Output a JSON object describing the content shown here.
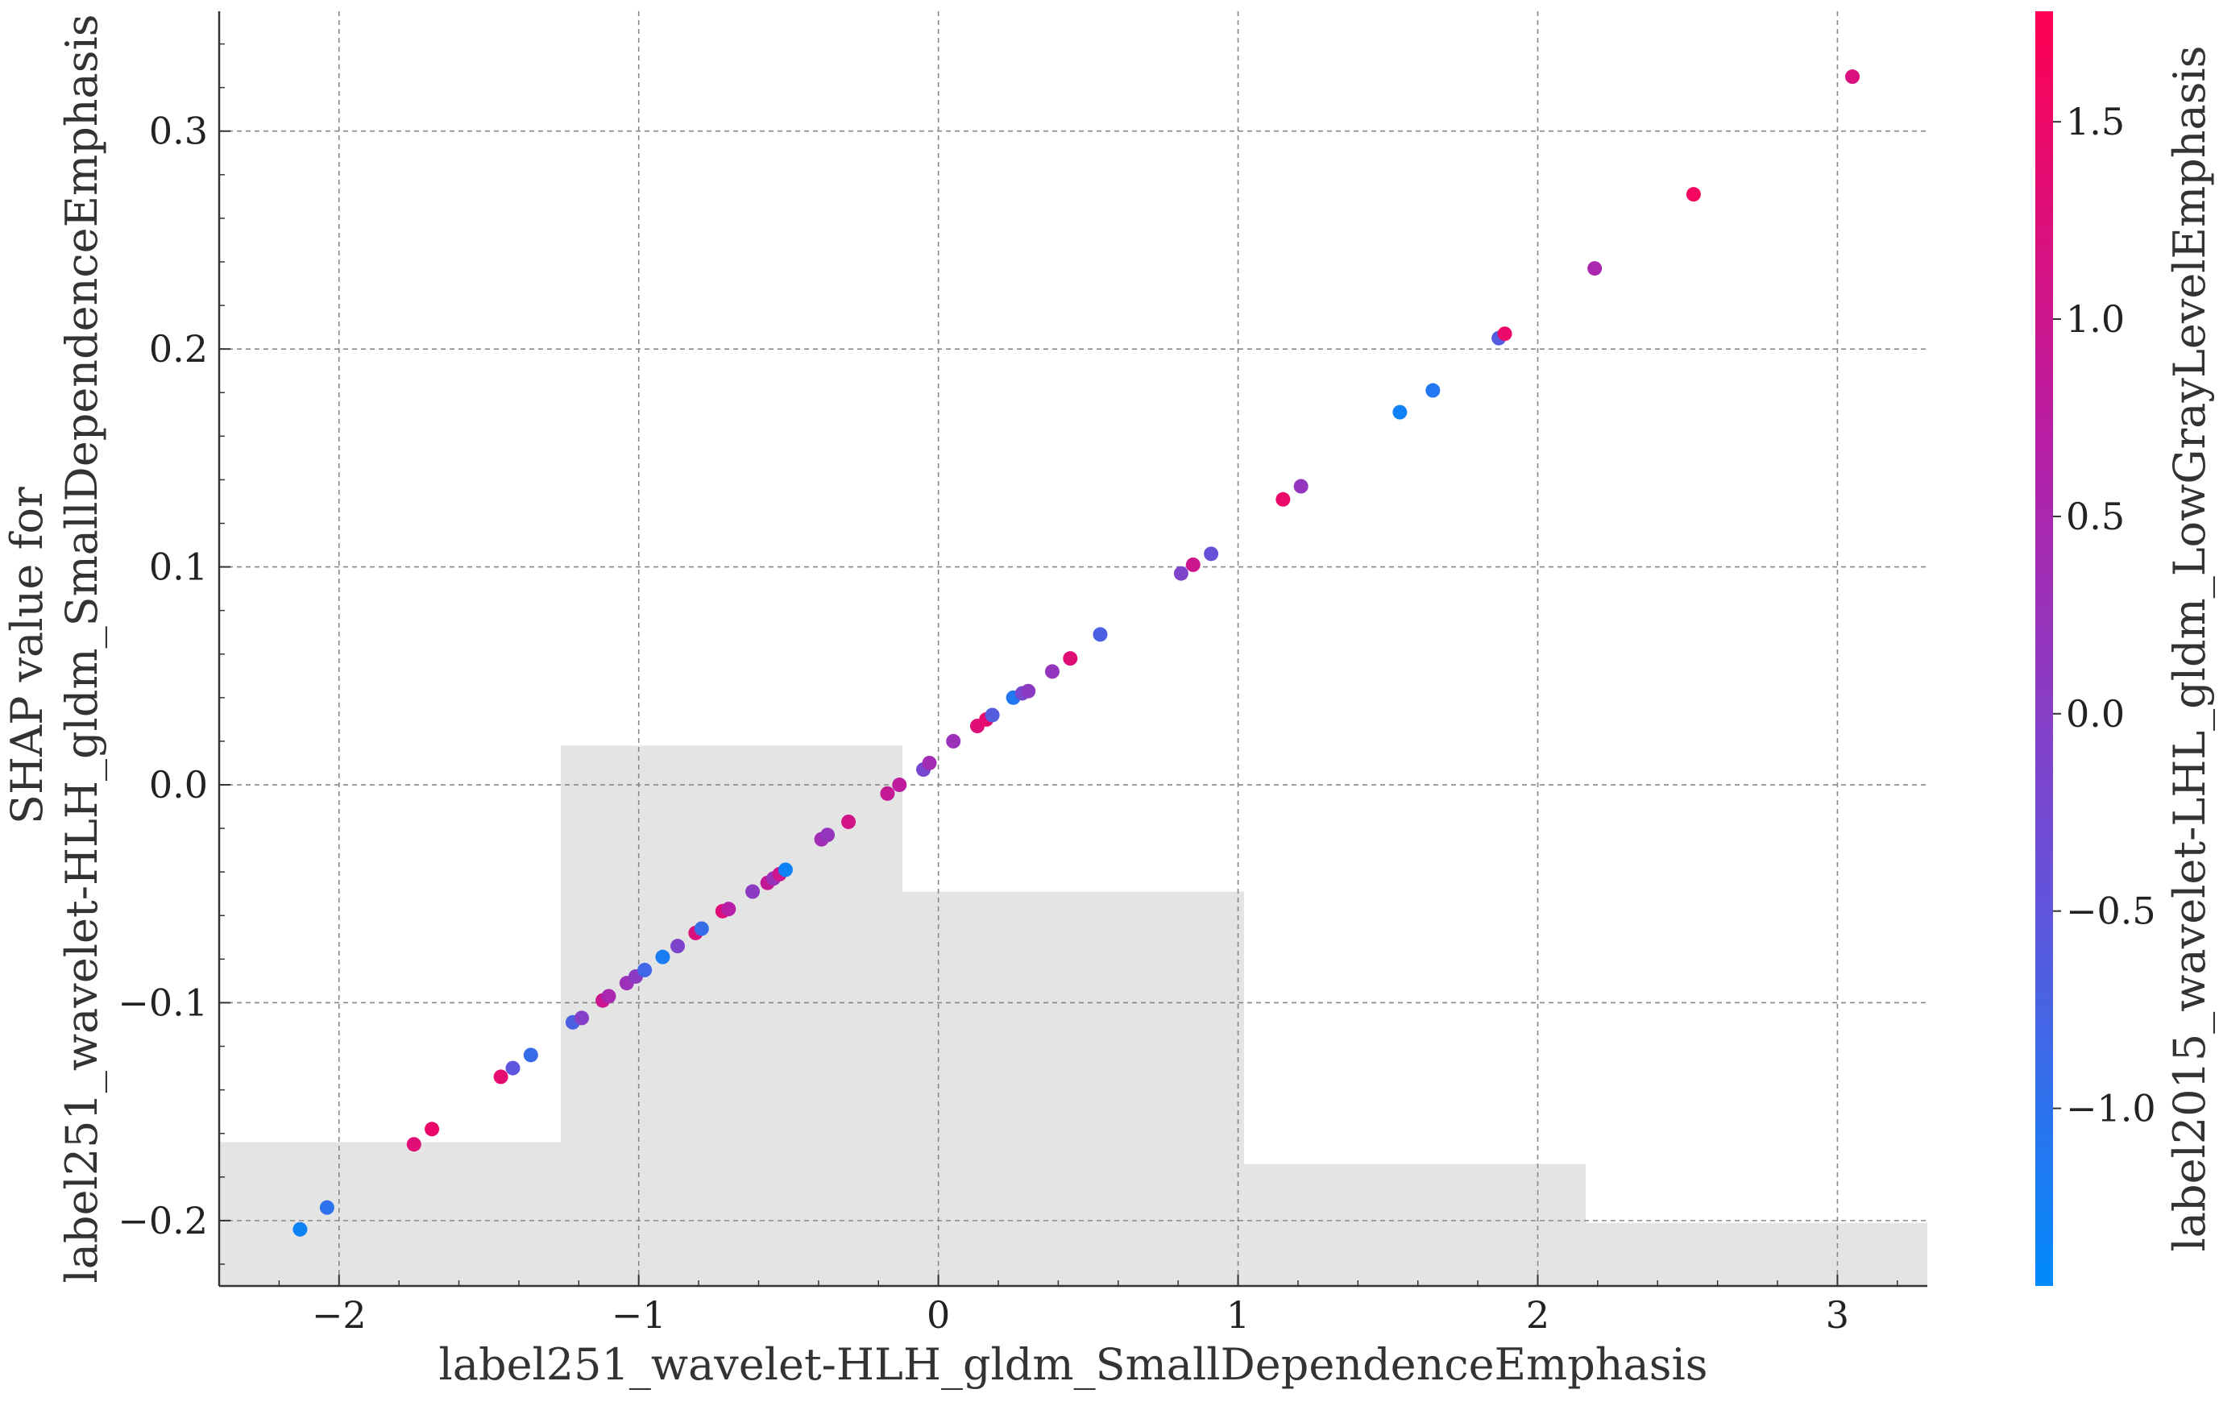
{
  "chart_data": {
    "type": "scatter",
    "xlabel": "label251_wavelet-HLH_gldm_SmallDependenceEmphasis",
    "ylabel_lines": [
      "SHAP value for",
      "label251_wavelet-HLH_gldm_SmallDependenceEmphasis"
    ],
    "colorbar_label": "label2015_wavelet-LHL_gldm_LowGrayLevelEmphasis",
    "xlim": [
      -2.4,
      3.3
    ],
    "ylim": [
      -0.23,
      0.355
    ],
    "x_ticks": [
      -2,
      -1,
      0,
      1,
      2,
      3
    ],
    "x_tick_labels": [
      "−2",
      "−1",
      "0",
      "1",
      "2",
      "3"
    ],
    "y_ticks": [
      -0.2,
      -0.1,
      0.0,
      0.1,
      0.2,
      0.3
    ],
    "y_tick_labels": [
      "−0.2",
      "−0.1",
      "0.0",
      "0.1",
      "0.2",
      "0.3"
    ],
    "colorbar_range": [
      -1.45,
      1.78
    ],
    "colorbar_ticks": [
      -1.0,
      -0.5,
      0.0,
      0.5,
      1.0,
      1.5
    ],
    "colorbar_tick_labels": [
      "−1.0",
      "−0.5",
      "0.0",
      "0.5",
      "1.0",
      "1.5"
    ],
    "colormap": [
      "#008bfb",
      "#6b4fd8",
      "#b71fa6",
      "#ff0052"
    ],
    "grid": true,
    "histogram": {
      "color": "#e4e4e4",
      "bin_edges": [
        -2.4,
        -1.26,
        -0.12,
        1.02,
        2.16,
        3.3
      ],
      "heights": [
        -0.164,
        0.018,
        -0.049,
        -0.174,
        -0.201
      ],
      "baseline": -0.23
    },
    "points": [
      {
        "x": -2.13,
        "y": -0.204,
        "c": -1.3
      },
      {
        "x": -2.04,
        "y": -0.194,
        "c": -1.0
      },
      {
        "x": -1.75,
        "y": -0.165,
        "c": 1.3
      },
      {
        "x": -1.69,
        "y": -0.158,
        "c": 1.5
      },
      {
        "x": -1.46,
        "y": -0.134,
        "c": 1.4
      },
      {
        "x": -1.42,
        "y": -0.13,
        "c": -0.5
      },
      {
        "x": -1.36,
        "y": -0.124,
        "c": -0.9
      },
      {
        "x": -1.22,
        "y": -0.109,
        "c": -0.7
      },
      {
        "x": -1.19,
        "y": -0.107,
        "c": 0.0
      },
      {
        "x": -1.12,
        "y": -0.099,
        "c": 1.0
      },
      {
        "x": -1.1,
        "y": -0.097,
        "c": 0.5
      },
      {
        "x": -1.04,
        "y": -0.091,
        "c": 0.3
      },
      {
        "x": -1.01,
        "y": -0.088,
        "c": 0.1
      },
      {
        "x": -0.98,
        "y": -0.085,
        "c": -0.8
      },
      {
        "x": -0.92,
        "y": -0.079,
        "c": -1.2
      },
      {
        "x": -0.87,
        "y": -0.074,
        "c": -0.1
      },
      {
        "x": -0.81,
        "y": -0.068,
        "c": 1.2
      },
      {
        "x": -0.79,
        "y": -0.066,
        "c": -0.9
      },
      {
        "x": -0.72,
        "y": -0.058,
        "c": 1.3
      },
      {
        "x": -0.7,
        "y": -0.057,
        "c": 0.7
      },
      {
        "x": -0.62,
        "y": -0.049,
        "c": 0.1
      },
      {
        "x": -0.57,
        "y": -0.045,
        "c": 0.9
      },
      {
        "x": -0.55,
        "y": -0.043,
        "c": 0.3
      },
      {
        "x": -0.53,
        "y": -0.041,
        "c": 1.0
      },
      {
        "x": -0.51,
        "y": -0.039,
        "c": -1.3
      },
      {
        "x": -0.39,
        "y": -0.025,
        "c": 0.4
      },
      {
        "x": -0.37,
        "y": -0.023,
        "c": 0.2
      },
      {
        "x": -0.3,
        "y": -0.017,
        "c": 1.1
      },
      {
        "x": -0.17,
        "y": -0.004,
        "c": 0.9
      },
      {
        "x": -0.13,
        "y": 0.0,
        "c": 0.8
      },
      {
        "x": -0.05,
        "y": 0.007,
        "c": -0.2
      },
      {
        "x": -0.03,
        "y": 0.01,
        "c": 0.4
      },
      {
        "x": 0.05,
        "y": 0.02,
        "c": 0.3
      },
      {
        "x": 0.13,
        "y": 0.027,
        "c": 1.3
      },
      {
        "x": 0.16,
        "y": 0.03,
        "c": 1.4
      },
      {
        "x": 0.18,
        "y": 0.032,
        "c": -0.6
      },
      {
        "x": 0.25,
        "y": 0.04,
        "c": -1.1
      },
      {
        "x": 0.28,
        "y": 0.042,
        "c": -0.2
      },
      {
        "x": 0.3,
        "y": 0.043,
        "c": 0.1
      },
      {
        "x": 0.38,
        "y": 0.052,
        "c": 0.2
      },
      {
        "x": 0.44,
        "y": 0.058,
        "c": 1.3
      },
      {
        "x": 0.54,
        "y": 0.069,
        "c": -0.7
      },
      {
        "x": 0.81,
        "y": 0.097,
        "c": -0.1
      },
      {
        "x": 0.85,
        "y": 0.101,
        "c": 1.0
      },
      {
        "x": 0.91,
        "y": 0.106,
        "c": -0.4
      },
      {
        "x": 1.15,
        "y": 0.131,
        "c": 1.5
      },
      {
        "x": 1.21,
        "y": 0.137,
        "c": 0.2
      },
      {
        "x": 1.54,
        "y": 0.171,
        "c": -1.3
      },
      {
        "x": 1.65,
        "y": 0.181,
        "c": -1.1
      },
      {
        "x": 1.87,
        "y": 0.205,
        "c": -0.6
      },
      {
        "x": 1.89,
        "y": 0.207,
        "c": 1.5
      },
      {
        "x": 2.19,
        "y": 0.237,
        "c": 0.5
      },
      {
        "x": 2.52,
        "y": 0.271,
        "c": 1.6
      },
      {
        "x": 3.05,
        "y": 0.325,
        "c": 1.2
      }
    ]
  }
}
